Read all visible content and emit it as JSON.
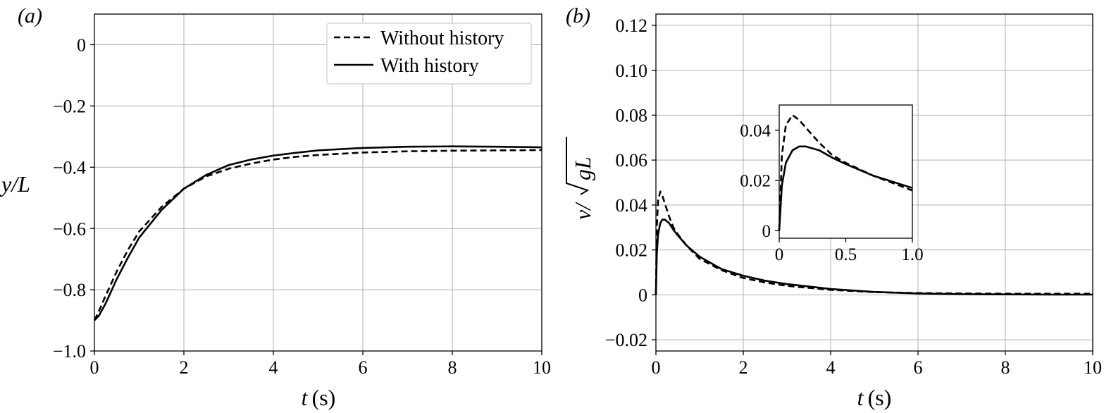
{
  "chart_data": [
    {
      "type": "line",
      "panel_label": "(a)",
      "xlabel_var": "t",
      "xlabel_unit": "(s)",
      "ylabel": "y/L",
      "xlim": [
        0,
        10
      ],
      "ylim": [
        -1.0,
        0.1
      ],
      "xticks": [
        0,
        2,
        4,
        6,
        8,
        10
      ],
      "xtick_labels": [
        "0",
        "2",
        "4",
        "6",
        "8",
        "10"
      ],
      "yticks": [
        -1.0,
        -0.8,
        -0.6,
        -0.4,
        -0.2,
        0
      ],
      "ytick_labels": [
        "−1.0",
        "−0.8",
        "−0.6",
        "−0.4",
        "−0.2",
        "0"
      ],
      "grid": true,
      "legend_placement": "top-right",
      "series": [
        {
          "name": "Without history",
          "style": "dashed",
          "color": "#000000",
          "x": [
            0,
            0.1,
            0.25,
            0.5,
            0.75,
            1.0,
            1.5,
            2.0,
            2.5,
            3.0,
            3.5,
            4.0,
            4.5,
            5.0,
            6.0,
            7.0,
            8.0,
            9.0,
            10.0
          ],
          "y": [
            -0.9,
            -0.87,
            -0.82,
            -0.74,
            -0.67,
            -0.61,
            -0.53,
            -0.47,
            -0.43,
            -0.405,
            -0.388,
            -0.375,
            -0.366,
            -0.36,
            -0.352,
            -0.348,
            -0.346,
            -0.345,
            -0.344
          ]
        },
        {
          "name": "With history",
          "style": "solid",
          "color": "#000000",
          "x": [
            0,
            0.1,
            0.25,
            0.5,
            0.75,
            1.0,
            1.5,
            2.0,
            2.5,
            3.0,
            3.5,
            4.0,
            4.5,
            5.0,
            6.0,
            7.0,
            8.0,
            9.0,
            10.0
          ],
          "y": [
            -0.9,
            -0.885,
            -0.845,
            -0.765,
            -0.695,
            -0.63,
            -0.54,
            -0.47,
            -0.425,
            -0.393,
            -0.375,
            -0.362,
            -0.353,
            -0.345,
            -0.337,
            -0.333,
            -0.332,
            -0.333,
            -0.335
          ]
        }
      ]
    },
    {
      "type": "line",
      "panel_label": "(b)",
      "xlabel_var": "t",
      "xlabel_unit": "(s)",
      "ylabel_prefix": "v/",
      "ylabel_radicand": "gL",
      "xlim": [
        0,
        10
      ],
      "ylim": [
        -0.025,
        0.125
      ],
      "xticks": [
        0,
        2,
        4,
        6,
        8,
        10
      ],
      "xtick_labels": [
        "0",
        "2",
        "4",
        "6",
        "8",
        "10"
      ],
      "yticks": [
        -0.02,
        0,
        0.02,
        0.04,
        0.06,
        0.08,
        0.1,
        0.12
      ],
      "ytick_labels": [
        "−0.02",
        "0",
        "0.02",
        "0.04",
        "0.06",
        "0.08",
        "0.10",
        "0.12"
      ],
      "grid": true,
      "series": [
        {
          "name": "Without history",
          "style": "dashed",
          "color": "#000000",
          "x": [
            0,
            0.02,
            0.05,
            0.1,
            0.15,
            0.2,
            0.3,
            0.4,
            0.5,
            0.7,
            1.0,
            1.5,
            2.0,
            2.5,
            3.0,
            4.0,
            5.0,
            6.0,
            7.0,
            8.0,
            9.0,
            10.0
          ],
          "y": [
            0,
            0.03,
            0.042,
            0.046,
            0.044,
            0.041,
            0.035,
            0.03,
            0.027,
            0.022,
            0.016,
            0.011,
            0.0075,
            0.0055,
            0.004,
            0.0022,
            0.0012,
            0.0008,
            0.0006,
            0.0005,
            0.0005,
            0.0005
          ]
        },
        {
          "name": "With history",
          "style": "solid",
          "color": "#000000",
          "x": [
            0,
            0.02,
            0.05,
            0.1,
            0.15,
            0.2,
            0.3,
            0.4,
            0.5,
            0.7,
            1.0,
            1.5,
            2.0,
            2.5,
            3.0,
            4.0,
            5.0,
            6.0,
            7.0,
            8.0,
            9.0,
            10.0
          ],
          "y": [
            0,
            0.018,
            0.027,
            0.032,
            0.0335,
            0.0335,
            0.032,
            0.029,
            0.0265,
            0.022,
            0.017,
            0.0115,
            0.0085,
            0.0063,
            0.0048,
            0.0026,
            0.0013,
            0.0006,
            0.0003,
            0.0002,
            0.0001,
            0.0001
          ]
        }
      ],
      "inset": {
        "xlim": [
          0,
          1.0
        ],
        "ylim": [
          -0.003,
          0.05
        ],
        "xticks": [
          0,
          0.5,
          1.0
        ],
        "xtick_labels": [
          "0",
          "0.5",
          "1.0"
        ],
        "yticks": [
          0,
          0.02,
          0.04
        ],
        "ytick_labels": [
          "0",
          "0.02",
          "0.04"
        ],
        "grid": false,
        "series": [
          {
            "name": "Without history",
            "style": "dashed",
            "x": [
              0,
              0.02,
              0.05,
              0.1,
              0.15,
              0.2,
              0.3,
              0.4,
              0.5,
              0.7,
              1.0
            ],
            "y": [
              0,
              0.03,
              0.042,
              0.046,
              0.044,
              0.041,
              0.035,
              0.03,
              0.027,
              0.022,
              0.016
            ]
          },
          {
            "name": "With history",
            "style": "solid",
            "x": [
              0,
              0.02,
              0.05,
              0.1,
              0.15,
              0.2,
              0.3,
              0.4,
              0.5,
              0.7,
              1.0
            ],
            "y": [
              0,
              0.018,
              0.027,
              0.032,
              0.0335,
              0.0335,
              0.032,
              0.029,
              0.0265,
              0.022,
              0.017
            ]
          }
        ]
      }
    }
  ]
}
